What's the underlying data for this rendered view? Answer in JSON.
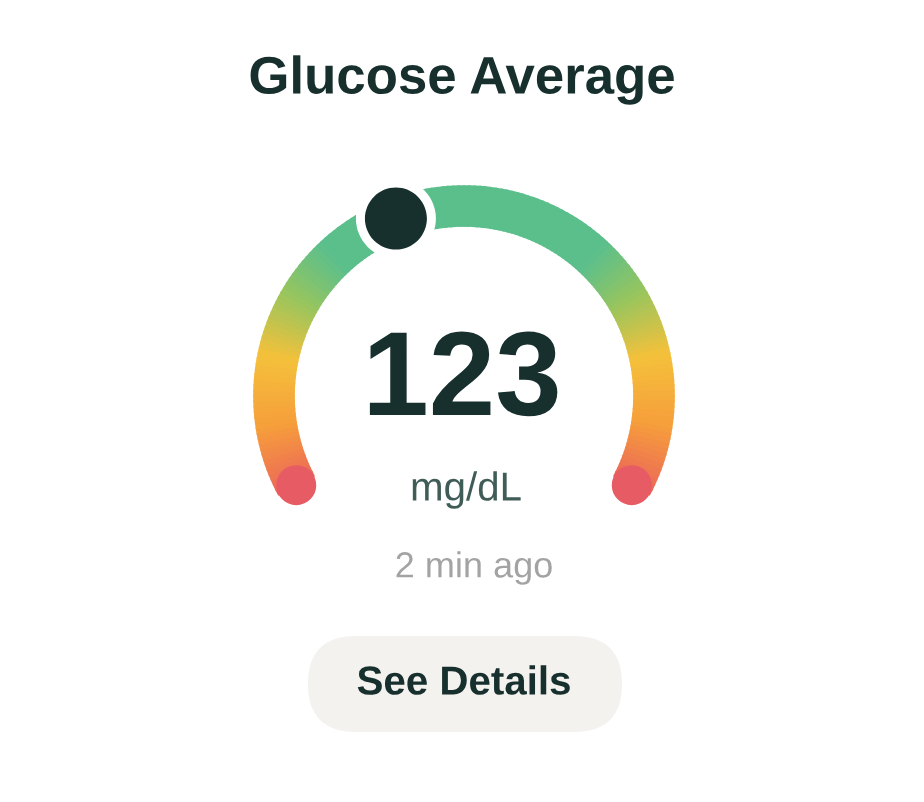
{
  "chart_data": {
    "type": "other",
    "title": "Glucose Average",
    "values": [
      123
    ],
    "data_labels": true,
    "annotations": [
      "mg/dL",
      "2 min ago",
      "See Details"
    ]
  }
}
